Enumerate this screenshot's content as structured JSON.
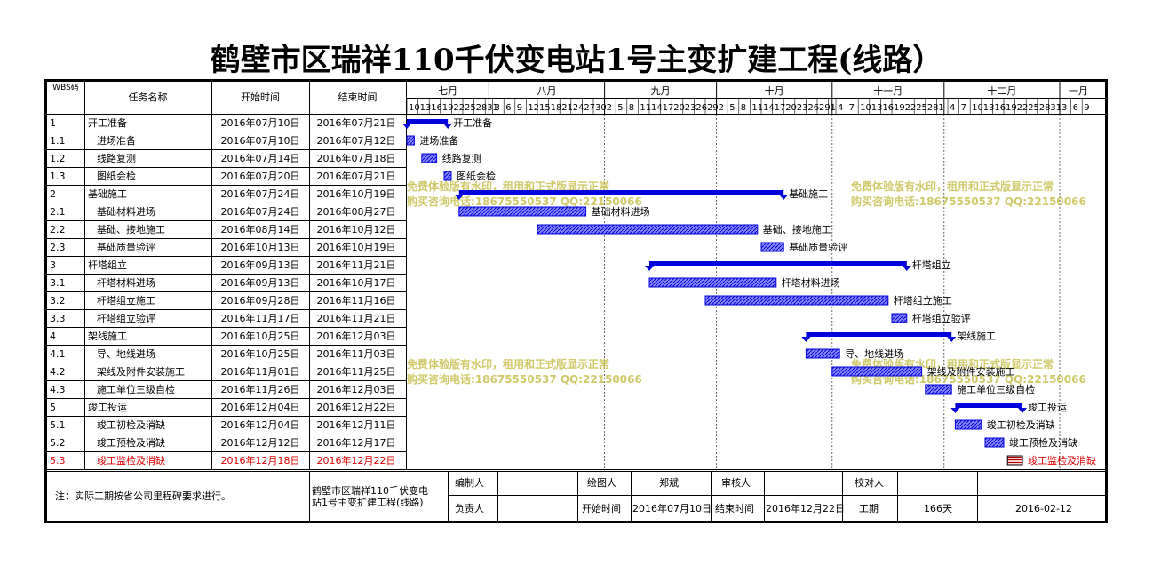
{
  "title": "鹤壁市区瑞祥110千伏变电站1号主变扩建工程(线路）",
  "headers": {
    "wbs": "WBS码",
    "name": "任务名称",
    "start": "开始时间",
    "end": "结束时间"
  },
  "months": [
    "七月",
    "八月",
    "九月",
    "十月",
    "十一月",
    "十二月",
    "一月"
  ],
  "day_ticks": [
    "10",
    "13",
    "16",
    "19",
    "22",
    "25",
    "28",
    "31",
    "3",
    "6",
    "9",
    "12",
    "15",
    "18",
    "21",
    "24",
    "27",
    "30",
    "2",
    "5",
    "8",
    "11",
    "14",
    "17",
    "20",
    "23",
    "26",
    "29",
    "2",
    "5",
    "8",
    "11",
    "14",
    "17",
    "20",
    "23",
    "26",
    "29",
    "1",
    "4",
    "7",
    "10",
    "13",
    "16",
    "19",
    "22",
    "25",
    "28",
    "1",
    "4",
    "7",
    "10",
    "13",
    "16",
    "19",
    "22",
    "25",
    "28",
    "31",
    "3",
    "6",
    "9"
  ],
  "chart_data": {
    "type": "gantt",
    "x_range": [
      "2016-07-10",
      "2017-01-11"
    ],
    "tasks": [
      {
        "wbs": "1",
        "name": "开工准备",
        "start": "2016年07月10日",
        "end": "2016年07月21日",
        "s": "2016-07-10",
        "e": "2016-07-21",
        "summary": true,
        "indent": 0,
        "label": "开工准备"
      },
      {
        "wbs": "1.1",
        "name": "进场准备",
        "start": "2016年07月10日",
        "end": "2016年07月12日",
        "s": "2016-07-10",
        "e": "2016-07-12",
        "summary": false,
        "indent": 1,
        "label": "进场准备"
      },
      {
        "wbs": "1.2",
        "name": "线路复测",
        "start": "2016年07月14日",
        "end": "2016年07月18日",
        "s": "2016-07-14",
        "e": "2016-07-18",
        "summary": false,
        "indent": 1,
        "label": "线路复测"
      },
      {
        "wbs": "1.3",
        "name": "图纸会检",
        "start": "2016年07月20日",
        "end": "2016年07月21日",
        "s": "2016-07-20",
        "e": "2016-07-21",
        "summary": false,
        "indent": 1,
        "label": "图纸会检"
      },
      {
        "wbs": "2",
        "name": "基础施工",
        "start": "2016年07月24日",
        "end": "2016年10月19日",
        "s": "2016-07-24",
        "e": "2016-10-19",
        "summary": true,
        "indent": 0,
        "label": "基础施工"
      },
      {
        "wbs": "2.1",
        "name": "基础材料进场",
        "start": "2016年07月24日",
        "end": "2016年08月27日",
        "s": "2016-07-24",
        "e": "2016-08-27",
        "summary": false,
        "indent": 1,
        "label": "基础材料进场"
      },
      {
        "wbs": "2.2",
        "name": "基础、接地施工",
        "start": "2016年08月14日",
        "end": "2016年10月12日",
        "s": "2016-08-14",
        "e": "2016-10-12",
        "summary": false,
        "indent": 1,
        "label": "基础、接地施工"
      },
      {
        "wbs": "2.3",
        "name": "基础质量验评",
        "start": "2016年10月13日",
        "end": "2016年10月19日",
        "s": "2016-10-13",
        "e": "2016-10-19",
        "summary": false,
        "indent": 1,
        "label": "基础质量验评"
      },
      {
        "wbs": "3",
        "name": "杆塔组立",
        "start": "2016年09月13日",
        "end": "2016年11月21日",
        "s": "2016-09-13",
        "e": "2016-11-21",
        "summary": true,
        "indent": 0,
        "label": "杆塔组立"
      },
      {
        "wbs": "3.1",
        "name": "杆塔材料进场",
        "start": "2016年09月13日",
        "end": "2016年10月17日",
        "s": "2016-09-13",
        "e": "2016-10-17",
        "summary": false,
        "indent": 1,
        "label": "杆塔材料进场"
      },
      {
        "wbs": "3.2",
        "name": "杆塔组立施工",
        "start": "2016年09月28日",
        "end": "2016年11月16日",
        "s": "2016-09-28",
        "e": "2016-11-16",
        "summary": false,
        "indent": 1,
        "label": "杆塔组立施工"
      },
      {
        "wbs": "3.3",
        "name": "杆塔组立验评",
        "start": "2016年11月17日",
        "end": "2016年11月21日",
        "s": "2016-11-17",
        "e": "2016-11-21",
        "summary": false,
        "indent": 1,
        "label": "杆塔组立验评"
      },
      {
        "wbs": "4",
        "name": "架线施工",
        "start": "2016年10月25日",
        "end": "2016年12月03日",
        "s": "2016-10-25",
        "e": "2016-12-03",
        "summary": true,
        "indent": 0,
        "label": "架线施工"
      },
      {
        "wbs": "4.1",
        "name": "导、地线进场",
        "start": "2016年10月25日",
        "end": "2016年11月03日",
        "s": "2016-10-25",
        "e": "2016-11-03",
        "summary": false,
        "indent": 1,
        "label": "导、地线进场"
      },
      {
        "wbs": "4.2",
        "name": "架线及附件安装施工",
        "start": "2016年11月01日",
        "end": "2016年11月25日",
        "s": "2016-11-01",
        "e": "2016-11-25",
        "summary": false,
        "indent": 1,
        "label": "架线及附件安装施工"
      },
      {
        "wbs": "4.3",
        "name": "施工单位三级自检",
        "start": "2016年11月26日",
        "end": "2016年12月03日",
        "s": "2016-11-26",
        "e": "2016-12-03",
        "summary": false,
        "indent": 1,
        "label": "施工单位三级自检"
      },
      {
        "wbs": "5",
        "name": "竣工投运",
        "start": "2016年12月04日",
        "end": "2016年12月22日",
        "s": "2016-12-04",
        "e": "2016-12-22",
        "summary": true,
        "indent": 0,
        "label": "竣工投运"
      },
      {
        "wbs": "5.1",
        "name": "竣工初检及消缺",
        "start": "2016年12月04日",
        "end": "2016年12月11日",
        "s": "2016-12-04",
        "e": "2016-12-11",
        "summary": false,
        "indent": 1,
        "label": "竣工初检及消缺"
      },
      {
        "wbs": "5.2",
        "name": "竣工预检及消缺",
        "start": "2016年12月12日",
        "end": "2016年12月17日",
        "s": "2016-12-12",
        "e": "2016-12-17",
        "summary": false,
        "indent": 1,
        "label": "竣工预检及消缺"
      },
      {
        "wbs": "5.3",
        "name": "竣工监检及消缺",
        "start": "2016年12月18日",
        "end": "2016年12月22日",
        "s": "2016-12-18",
        "e": "2016-12-22",
        "summary": false,
        "indent": 1,
        "label": "竣工监检及消缺",
        "highlight": true
      }
    ]
  },
  "colors": {
    "bar": "#0000dd",
    "bar_light": "#8888ff",
    "highlight": "#ff0000",
    "highlight_text": "#dd0000",
    "watermark": "#c8c050"
  },
  "watermark": {
    "line1": "免费体验版有水印，租用和正式版显示正常",
    "line2": "购买咨询电话:18675550537 QQ:22150066"
  },
  "footer": {
    "note": "注：实际工期按省公司里程碑要求进行。",
    "project_line1": "鹤壁市区瑞祥110千伏变电",
    "project_line2": "站1号主变扩建工程(线路)",
    "editor_label": "编制人",
    "editor_value": "",
    "drafter_label": "绘图人",
    "drafter_value": "郑斌",
    "reviewer_label": "审核人",
    "reviewer_value": "",
    "checker_label": "校对人",
    "checker_value": "",
    "owner_label": "负责人",
    "owner_value": "",
    "start_label": "开始时间",
    "start_value": "2016年07月10日",
    "end_label": "结束时间",
    "end_value": "2016年12月22日",
    "duration_label": "工期",
    "duration_value": "166天",
    "date_value": "2016-02-12"
  }
}
